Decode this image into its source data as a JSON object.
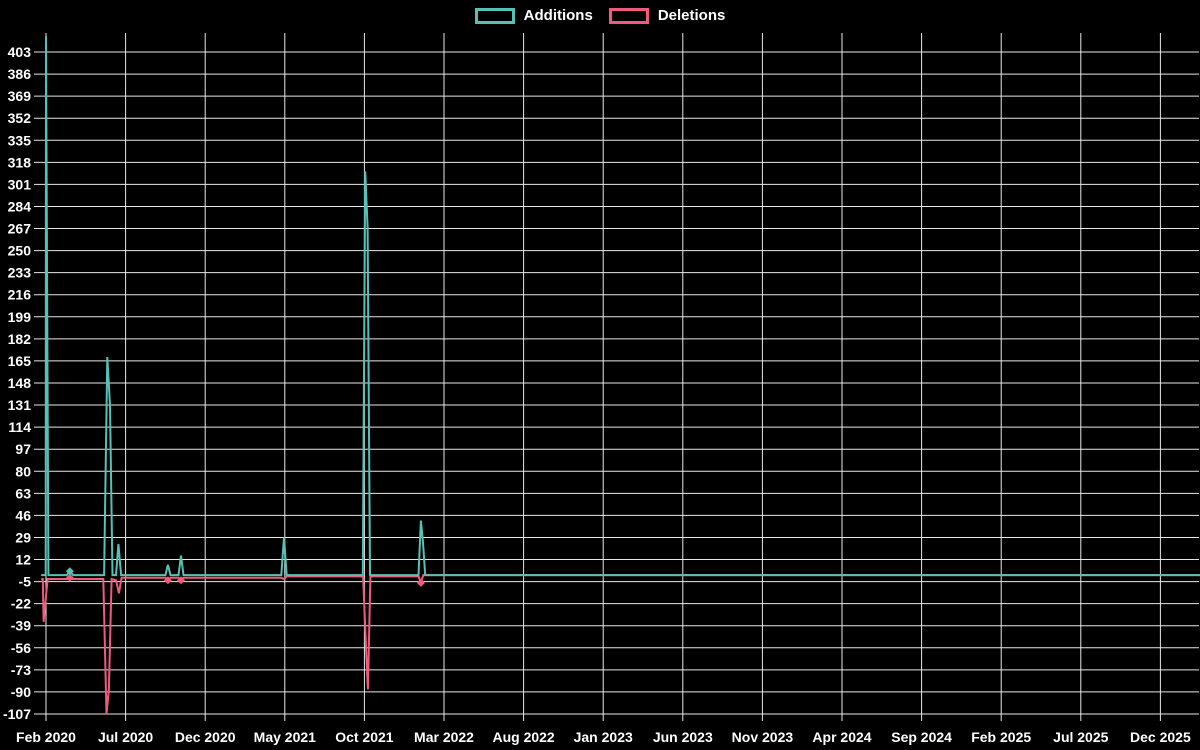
{
  "page": {
    "background": "#000000",
    "text_color": "#ffffff",
    "grid_color": "#e8e8e8"
  },
  "chart_data": {
    "type": "line",
    "title": "",
    "grid": "on",
    "legend_position": "top-center",
    "x_unit": "months since Feb 2020 (fractional = weekly detail)",
    "x_axis": {
      "tick_labels": [
        "Feb 2020",
        "Jul 2020",
        "Dec 2020",
        "May 2021",
        "Oct 2021",
        "Mar 2022",
        "Aug 2022",
        "Jan 2023",
        "Jun 2023",
        "Nov 2023",
        "Apr 2024",
        "Sep 2024",
        "Feb 2025",
        "Jul 2025",
        "Dec 2025"
      ],
      "months_per_tick": 5
    },
    "y_axis": {
      "min": -107,
      "max": 403,
      "step": 17,
      "ticks": [
        403,
        386,
        369,
        352,
        335,
        318,
        301,
        284,
        267,
        250,
        233,
        216,
        199,
        182,
        165,
        148,
        131,
        114,
        97,
        80,
        63,
        46,
        29,
        12,
        -5,
        -22,
        -39,
        -56,
        -73,
        -90,
        -107
      ]
    },
    "series": [
      {
        "name": "Additions",
        "color": "#57c1b5",
        "points": [
          [
            -0.3,
            0
          ],
          [
            -0.02,
            0
          ],
          [
            0,
            415
          ],
          [
            0.15,
            0
          ],
          [
            1.3,
            0
          ],
          [
            1.5,
            3
          ],
          [
            1.7,
            0
          ],
          [
            3.65,
            0
          ],
          [
            3.85,
            168
          ],
          [
            4.02,
            131
          ],
          [
            4.18,
            0
          ],
          [
            4.4,
            0
          ],
          [
            4.55,
            24
          ],
          [
            4.72,
            0
          ],
          [
            7.5,
            0
          ],
          [
            7.66,
            8
          ],
          [
            7.82,
            0
          ],
          [
            8.32,
            0
          ],
          [
            8.48,
            15
          ],
          [
            8.64,
            0
          ],
          [
            14.78,
            0
          ],
          [
            14.95,
            29
          ],
          [
            15.12,
            0
          ],
          [
            19.9,
            0
          ],
          [
            20.05,
            311
          ],
          [
            20.2,
            268
          ],
          [
            20.35,
            0
          ],
          [
            23.4,
            0
          ],
          [
            23.55,
            42
          ],
          [
            23.68,
            25
          ],
          [
            23.82,
            0
          ],
          [
            72.5,
            0
          ]
        ],
        "markers": [
          [
            1.5,
            3
          ]
        ]
      },
      {
        "name": "Deletions",
        "color": "#f05b7d",
        "points": [
          [
            -0.3,
            -3
          ],
          [
            -0.2,
            -3
          ],
          [
            -0.15,
            -36
          ],
          [
            0.1,
            -3
          ],
          [
            1.35,
            -3
          ],
          [
            1.5,
            -2
          ],
          [
            1.65,
            -3
          ],
          [
            3.6,
            -3
          ],
          [
            3.8,
            -107
          ],
          [
            3.95,
            -88
          ],
          [
            4.12,
            -3
          ],
          [
            4.4,
            -4
          ],
          [
            4.58,
            -14
          ],
          [
            4.75,
            -2
          ],
          [
            7.5,
            -2
          ],
          [
            7.66,
            -4
          ],
          [
            7.82,
            -2
          ],
          [
            8.32,
            -2
          ],
          [
            8.48,
            -4
          ],
          [
            8.64,
            -2
          ],
          [
            14.78,
            -2
          ],
          [
            14.95,
            -3
          ],
          [
            15.12,
            -1
          ],
          [
            19.92,
            -1
          ],
          [
            20.08,
            -50
          ],
          [
            20.22,
            -88
          ],
          [
            20.38,
            -1
          ],
          [
            23.4,
            -1
          ],
          [
            23.55,
            -6
          ],
          [
            23.7,
            0
          ],
          [
            72.5,
            0
          ]
        ],
        "markers": [
          [
            1.5,
            -2
          ],
          [
            7.66,
            -4
          ],
          [
            8.48,
            -4
          ],
          [
            23.55,
            -6
          ]
        ]
      }
    ]
  }
}
